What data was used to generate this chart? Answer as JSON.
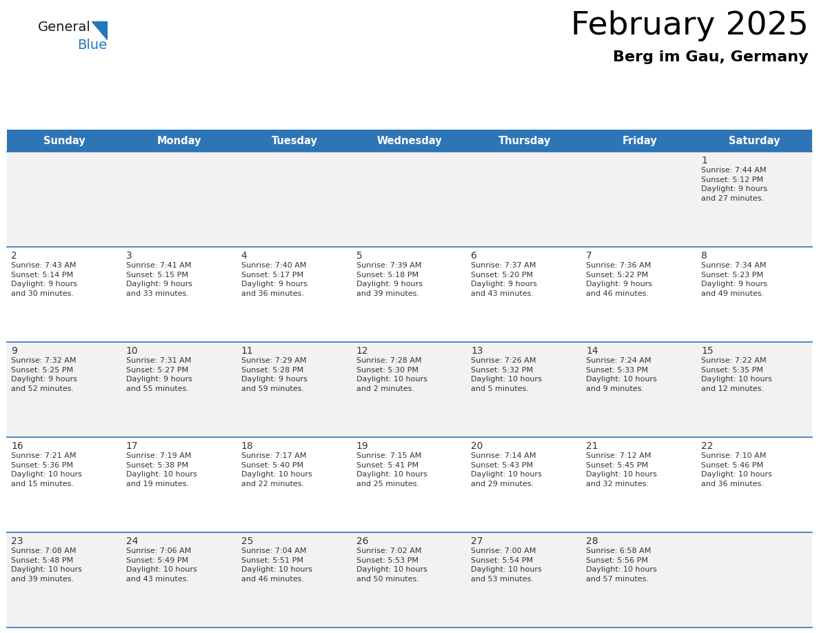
{
  "title": "February 2025",
  "subtitle": "Berg im Gau, Germany",
  "header_bg": "#2E75B6",
  "header_text": "#FFFFFF",
  "day_names": [
    "Sunday",
    "Monday",
    "Tuesday",
    "Wednesday",
    "Thursday",
    "Friday",
    "Saturday"
  ],
  "title_color": "#000000",
  "subtitle_color": "#000000",
  "cell_bg_odd": "#F2F2F2",
  "cell_bg_even": "#FFFFFF",
  "logo_general_color": "#1A1A1A",
  "logo_blue_color": "#2277BB",
  "day_num_color": "#333333",
  "info_color": "#333333",
  "header_fontsize": 10.5,
  "day_num_fontsize": 10,
  "info_fontsize": 8,
  "title_fontsize": 34,
  "subtitle_fontsize": 16,
  "logo_fontsize": 14,
  "weeks": [
    [
      {
        "day": null,
        "info": ""
      },
      {
        "day": null,
        "info": ""
      },
      {
        "day": null,
        "info": ""
      },
      {
        "day": null,
        "info": ""
      },
      {
        "day": null,
        "info": ""
      },
      {
        "day": null,
        "info": ""
      },
      {
        "day": 1,
        "info": "Sunrise: 7:44 AM\nSunset: 5:12 PM\nDaylight: 9 hours\nand 27 minutes."
      }
    ],
    [
      {
        "day": 2,
        "info": "Sunrise: 7:43 AM\nSunset: 5:14 PM\nDaylight: 9 hours\nand 30 minutes."
      },
      {
        "day": 3,
        "info": "Sunrise: 7:41 AM\nSunset: 5:15 PM\nDaylight: 9 hours\nand 33 minutes."
      },
      {
        "day": 4,
        "info": "Sunrise: 7:40 AM\nSunset: 5:17 PM\nDaylight: 9 hours\nand 36 minutes."
      },
      {
        "day": 5,
        "info": "Sunrise: 7:39 AM\nSunset: 5:18 PM\nDaylight: 9 hours\nand 39 minutes."
      },
      {
        "day": 6,
        "info": "Sunrise: 7:37 AM\nSunset: 5:20 PM\nDaylight: 9 hours\nand 43 minutes."
      },
      {
        "day": 7,
        "info": "Sunrise: 7:36 AM\nSunset: 5:22 PM\nDaylight: 9 hours\nand 46 minutes."
      },
      {
        "day": 8,
        "info": "Sunrise: 7:34 AM\nSunset: 5:23 PM\nDaylight: 9 hours\nand 49 minutes."
      }
    ],
    [
      {
        "day": 9,
        "info": "Sunrise: 7:32 AM\nSunset: 5:25 PM\nDaylight: 9 hours\nand 52 minutes."
      },
      {
        "day": 10,
        "info": "Sunrise: 7:31 AM\nSunset: 5:27 PM\nDaylight: 9 hours\nand 55 minutes."
      },
      {
        "day": 11,
        "info": "Sunrise: 7:29 AM\nSunset: 5:28 PM\nDaylight: 9 hours\nand 59 minutes."
      },
      {
        "day": 12,
        "info": "Sunrise: 7:28 AM\nSunset: 5:30 PM\nDaylight: 10 hours\nand 2 minutes."
      },
      {
        "day": 13,
        "info": "Sunrise: 7:26 AM\nSunset: 5:32 PM\nDaylight: 10 hours\nand 5 minutes."
      },
      {
        "day": 14,
        "info": "Sunrise: 7:24 AM\nSunset: 5:33 PM\nDaylight: 10 hours\nand 9 minutes."
      },
      {
        "day": 15,
        "info": "Sunrise: 7:22 AM\nSunset: 5:35 PM\nDaylight: 10 hours\nand 12 minutes."
      }
    ],
    [
      {
        "day": 16,
        "info": "Sunrise: 7:21 AM\nSunset: 5:36 PM\nDaylight: 10 hours\nand 15 minutes."
      },
      {
        "day": 17,
        "info": "Sunrise: 7:19 AM\nSunset: 5:38 PM\nDaylight: 10 hours\nand 19 minutes."
      },
      {
        "day": 18,
        "info": "Sunrise: 7:17 AM\nSunset: 5:40 PM\nDaylight: 10 hours\nand 22 minutes."
      },
      {
        "day": 19,
        "info": "Sunrise: 7:15 AM\nSunset: 5:41 PM\nDaylight: 10 hours\nand 25 minutes."
      },
      {
        "day": 20,
        "info": "Sunrise: 7:14 AM\nSunset: 5:43 PM\nDaylight: 10 hours\nand 29 minutes."
      },
      {
        "day": 21,
        "info": "Sunrise: 7:12 AM\nSunset: 5:45 PM\nDaylight: 10 hours\nand 32 minutes."
      },
      {
        "day": 22,
        "info": "Sunrise: 7:10 AM\nSunset: 5:46 PM\nDaylight: 10 hours\nand 36 minutes."
      }
    ],
    [
      {
        "day": 23,
        "info": "Sunrise: 7:08 AM\nSunset: 5:48 PM\nDaylight: 10 hours\nand 39 minutes."
      },
      {
        "day": 24,
        "info": "Sunrise: 7:06 AM\nSunset: 5:49 PM\nDaylight: 10 hours\nand 43 minutes."
      },
      {
        "day": 25,
        "info": "Sunrise: 7:04 AM\nSunset: 5:51 PM\nDaylight: 10 hours\nand 46 minutes."
      },
      {
        "day": 26,
        "info": "Sunrise: 7:02 AM\nSunset: 5:53 PM\nDaylight: 10 hours\nand 50 minutes."
      },
      {
        "day": 27,
        "info": "Sunrise: 7:00 AM\nSunset: 5:54 PM\nDaylight: 10 hours\nand 53 minutes."
      },
      {
        "day": 28,
        "info": "Sunrise: 6:58 AM\nSunset: 5:56 PM\nDaylight: 10 hours\nand 57 minutes."
      },
      {
        "day": null,
        "info": ""
      }
    ]
  ]
}
